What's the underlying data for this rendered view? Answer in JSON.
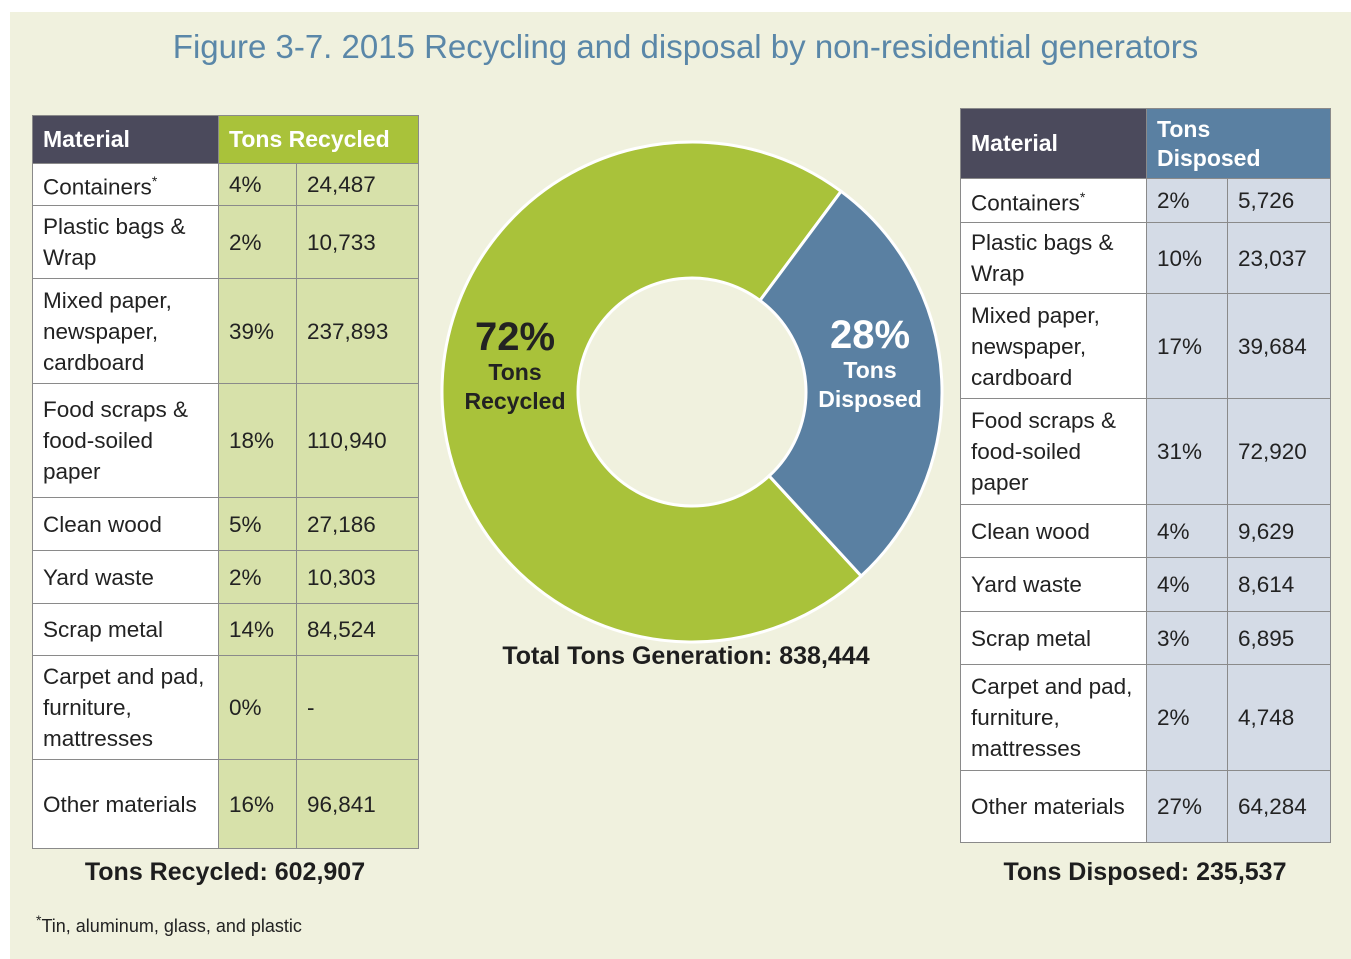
{
  "title": "Figure 3-7. 2015 Recycling and disposal by non-residential generators",
  "left_table": {
    "headers": [
      "Material",
      "Tons Recycled"
    ],
    "rows": [
      {
        "material": "Containers",
        "marker": "*",
        "percent": "4%",
        "tons": "24,487"
      },
      {
        "material": "Plastic bags & Wrap",
        "percent": "2%",
        "tons": "10,733"
      },
      {
        "material": "Mixed paper, newspaper, cardboard",
        "percent": "39%",
        "tons": "237,893"
      },
      {
        "material": "Food scraps & food-soiled paper",
        "percent": "18%",
        "tons": "110,940"
      },
      {
        "material": "Clean wood",
        "percent": "5%",
        "tons": "27,186"
      },
      {
        "material": "Yard waste",
        "percent": "2%",
        "tons": "10,303"
      },
      {
        "material": "Scrap metal",
        "percent": "14%",
        "tons": "84,524"
      },
      {
        "material": "Carpet and pad, furniture, mattresses",
        "percent": "0%",
        "tons": "-"
      },
      {
        "material": "Other materials",
        "percent": "16%",
        "tons": "96,841"
      }
    ],
    "total": "Tons Recycled: 602,907"
  },
  "right_table": {
    "headers": [
      "Material",
      "Tons Disposed"
    ],
    "rows": [
      {
        "material": "Containers",
        "marker": "*",
        "percent": "2%",
        "tons": "5,726"
      },
      {
        "material": "Plastic bags & Wrap",
        "percent": "10%",
        "tons": "23,037"
      },
      {
        "material": "Mixed paper, newspaper, cardboard",
        "percent": "17%",
        "tons": "39,684"
      },
      {
        "material": "Food scraps & food-soiled paper",
        "percent": "31%",
        "tons": "72,920"
      },
      {
        "material": "Clean wood",
        "percent": "4%",
        "tons": "9,629"
      },
      {
        "material": "Yard waste",
        "percent": "4%",
        "tons": "8,614"
      },
      {
        "material": "Scrap metal",
        "percent": "3%",
        "tons": "6,895"
      },
      {
        "material": "Carpet and pad, furniture, mattresses",
        "percent": "2%",
        "tons": "4,748"
      },
      {
        "material": "Other materials",
        "percent": "27%",
        "tons": "64,284"
      }
    ],
    "total": "Tons Disposed: 235,537"
  },
  "chart_data": {
    "type": "donut",
    "categories": [
      "Tons Recycled",
      "Tons Disposed"
    ],
    "values": [
      72,
      28
    ],
    "value_labels": [
      "72%",
      "28%"
    ],
    "colors": [
      "#a9c23a",
      "#5a80a2"
    ],
    "annotation": "Total Tons Generation: 838,444"
  },
  "footnote": {
    "marker": "*",
    "text": "Tin, aluminum, glass, and plastic"
  }
}
